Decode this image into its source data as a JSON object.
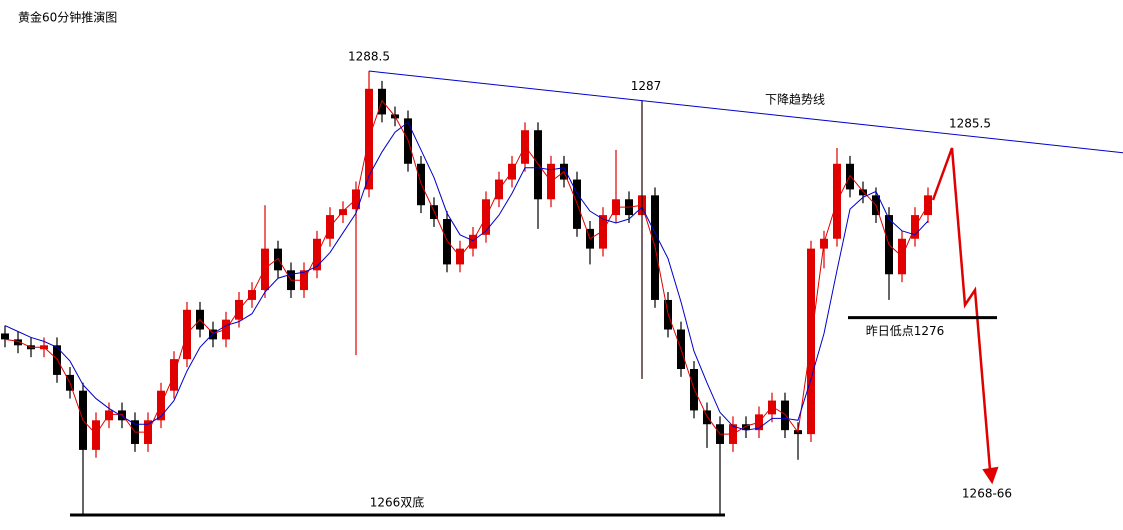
{
  "chart_data": {
    "type": "candlestick",
    "title": "黄金60分钟推演图",
    "ylim": [
      1265.24,
      1292.1
    ],
    "up_color": "#e00000",
    "down_color": "#000000",
    "open": [
      1275.2,
      1274.9,
      1274.6,
      1274.4,
      1274.6,
      1273.1,
      1272.3,
      1269.3,
      1270.8,
      1271.3,
      1270.8,
      1269.6,
      1270.8,
      1272.3,
      1273.9,
      1276.4,
      1275.4,
      1274.9,
      1275.9,
      1276.9,
      1277.4,
      1279.5,
      1278.4,
      1277.4,
      1278.4,
      1280.0,
      1281.2,
      1281.5,
      1282.5,
      1287.6,
      1286.3,
      1286.1,
      1283.8,
      1281.7,
      1281.0,
      1278.7,
      1279.5,
      1280.2,
      1282.0,
      1283.0,
      1283.8,
      1285.5,
      1282.0,
      1283.8,
      1283.0,
      1280.5,
      1279.5,
      1281.2,
      1282.0,
      1281.2,
      1282.2,
      1276.9,
      1275.4,
      1273.4,
      1271.3,
      1270.6,
      1269.6,
      1270.6,
      1270.3,
      1271.1,
      1271.8,
      1270.3,
      1270.1,
      1279.5,
      1280.0,
      1283.8,
      1282.5,
      1282.2,
      1281.2,
      1278.2,
      1280.0,
      1281.2
    ],
    "high": [
      1275.6,
      1275.3,
      1275.0,
      1275.0,
      1275.0,
      1273.5,
      1272.7,
      1271.2,
      1271.7,
      1271.7,
      1271.2,
      1271.2,
      1272.7,
      1274.3,
      1276.8,
      1276.8,
      1275.8,
      1276.3,
      1277.3,
      1277.8,
      1281.7,
      1279.9,
      1278.8,
      1278.8,
      1280.4,
      1281.6,
      1281.9,
      1282.9,
      1288.5,
      1288.0,
      1286.7,
      1286.5,
      1284.2,
      1282.1,
      1281.4,
      1279.9,
      1280.6,
      1282.4,
      1283.4,
      1284.2,
      1285.9,
      1285.9,
      1284.2,
      1284.2,
      1283.4,
      1280.9,
      1281.6,
      1284.5,
      1282.4,
      1287.0,
      1282.6,
      1277.3,
      1275.8,
      1273.8,
      1271.7,
      1271.0,
      1271.0,
      1271.0,
      1271.5,
      1272.2,
      1272.2,
      1270.7,
      1279.9,
      1280.4,
      1284.6,
      1284.2,
      1282.9,
      1282.6,
      1281.6,
      1280.4,
      1281.6,
      1282.6
    ],
    "low": [
      1274.5,
      1274.2,
      1274.0,
      1274.0,
      1272.7,
      1271.9,
      1266.0,
      1268.9,
      1270.4,
      1270.4,
      1269.2,
      1269.2,
      1270.4,
      1271.9,
      1273.5,
      1275.0,
      1274.5,
      1274.5,
      1275.5,
      1276.5,
      1277.0,
      1278.0,
      1277.0,
      1277.0,
      1278.0,
      1279.6,
      1280.8,
      1274.1,
      1282.1,
      1285.9,
      1285.7,
      1283.4,
      1281.3,
      1280.6,
      1278.3,
      1278.3,
      1279.1,
      1279.8,
      1281.6,
      1282.6,
      1283.4,
      1280.5,
      1281.6,
      1282.6,
      1280.1,
      1278.7,
      1279.1,
      1280.8,
      1280.8,
      1272.9,
      1276.5,
      1275.0,
      1273.0,
      1270.9,
      1269.4,
      1266.0,
      1269.2,
      1269.9,
      1269.9,
      1270.7,
      1269.9,
      1268.8,
      1269.7,
      1278.5,
      1279.6,
      1282.1,
      1281.8,
      1280.8,
      1276.9,
      1277.8,
      1279.6,
      1280.8
    ],
    "close": [
      1274.9,
      1274.6,
      1274.4,
      1274.6,
      1273.1,
      1272.3,
      1269.3,
      1270.8,
      1271.3,
      1270.8,
      1269.6,
      1270.8,
      1272.3,
      1273.9,
      1276.4,
      1275.4,
      1274.9,
      1275.9,
      1276.9,
      1277.4,
      1279.5,
      1278.4,
      1277.4,
      1278.4,
      1280.0,
      1281.2,
      1281.5,
      1282.5,
      1287.6,
      1286.3,
      1286.1,
      1283.8,
      1281.7,
      1281.0,
      1278.7,
      1279.5,
      1280.2,
      1282.0,
      1283.0,
      1283.8,
      1285.5,
      1282.0,
      1283.8,
      1283.0,
      1280.5,
      1279.5,
      1281.2,
      1282.0,
      1281.2,
      1282.2,
      1276.9,
      1275.4,
      1273.4,
      1271.3,
      1270.6,
      1269.6,
      1270.6,
      1270.3,
      1271.1,
      1271.8,
      1270.3,
      1270.1,
      1279.5,
      1280.0,
      1283.8,
      1282.5,
      1282.2,
      1281.2,
      1278.2,
      1280.0,
      1281.2,
      1282.2
    ],
    "overlays": [
      {
        "color": "#e00000",
        "values": [
          1274.9,
          1274.8,
          1274.5,
          1274.5,
          1273.9,
          1272.7,
          1270.8,
          1270.1,
          1271.1,
          1271.1,
          1270.2,
          1270.2,
          1271.6,
          1273.1,
          1275.2,
          1275.9,
          1275.2,
          1275.4,
          1276.4,
          1277.2,
          1278.5,
          1279.0,
          1277.9,
          1277.9,
          1279.2,
          1280.6,
          1281.4,
          1282.0,
          1285.1,
          1287.0,
          1286.2,
          1285.0,
          1282.8,
          1281.4,
          1279.9,
          1279.1,
          1279.9,
          1281.1,
          1282.5,
          1283.4,
          1284.7,
          1283.8,
          1282.9,
          1283.4,
          1281.8,
          1280.0,
          1280.4,
          1281.6,
          1281.6,
          1281.7,
          1279.6,
          1276.2,
          1274.4,
          1272.4,
          1271.0,
          1270.1,
          1270.1,
          1270.5,
          1270.7,
          1271.5,
          1271.1,
          1270.2,
          1274.8,
          1279.8,
          1281.9,
          1283.2,
          1282.4,
          1281.7,
          1279.7,
          1279.1,
          1280.6,
          1281.7
        ]
      },
      {
        "color": "#0000cc",
        "values": [
          1275.6,
          1275.3,
          1275.0,
          1274.8,
          1274.5,
          1273.8,
          1272.6,
          1271.9,
          1271.4,
          1271.0,
          1270.6,
          1270.6,
          1271.0,
          1271.8,
          1273.3,
          1274.5,
          1275.2,
          1275.6,
          1275.8,
          1276.2,
          1277.3,
          1278.0,
          1278.2,
          1278.3,
          1278.6,
          1279.3,
          1280.3,
          1281.3,
          1283.2,
          1284.4,
          1285.4,
          1285.9,
          1284.5,
          1283.1,
          1281.3,
          1280.2,
          1279.9,
          1280.4,
          1281.2,
          1282.3,
          1283.6,
          1283.6,
          1283.5,
          1283.6,
          1282.3,
          1281.4,
          1281.0,
          1280.8,
          1281.0,
          1281.6,
          1280.3,
          1279.0,
          1276.8,
          1274.3,
          1272.7,
          1271.2,
          1270.5,
          1270.3,
          1270.4,
          1270.9,
          1270.9,
          1270.8,
          1272.9,
          1275.2,
          1278.4,
          1281.5,
          1282.1,
          1282.4,
          1281.0,
          1280.4,
          1280.2,
          1280.9
        ]
      }
    ],
    "peaks": [
      1288.5,
      1287,
      1285.5
    ],
    "trend_label": "下降趋势线",
    "levels": [
      {
        "value": 1266,
        "label": "1266双底"
      },
      {
        "value": 1276,
        "label": "昨日低点1276"
      }
    ],
    "target_label": "1268-66"
  }
}
